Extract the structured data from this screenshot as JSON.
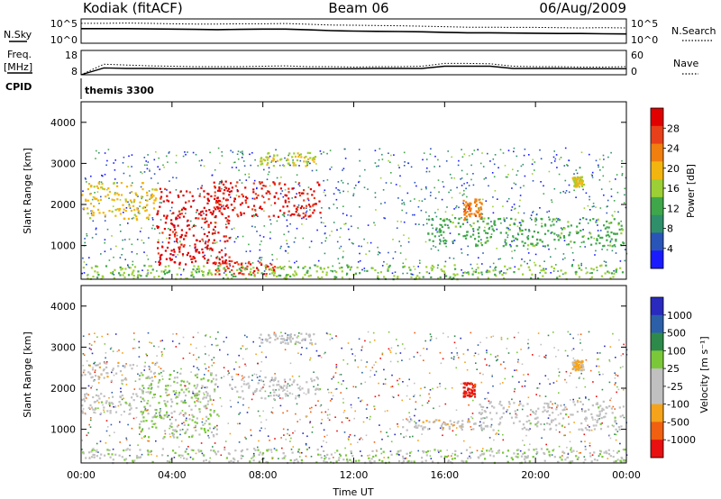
{
  "header": {
    "station": "Kodiak (fitACF)",
    "beam": "Beam 06",
    "date": "06/Aug/2009"
  },
  "left_labels": {
    "nsky": "N.Sky",
    "freq": "Freq.",
    "freq_unit": "[MHz]",
    "cpid": "CPID"
  },
  "right_labels": {
    "nsearch": "N.Search",
    "nave": "Nave"
  },
  "cpid_text": "themis 3300",
  "colors": {
    "power_scale": [
      "#1a1aff",
      "#2a55b8",
      "#2f8f6a",
      "#3fa74a",
      "#9ccf35",
      "#f2b50f",
      "#f07f10",
      "#e8401a",
      "#e00000"
    ],
    "velocity_scale": [
      "#2a2abf",
      "#2b60a8",
      "#2e8a4a",
      "#7ac83a",
      "#c0c0c0",
      "#c0c0c0",
      "#f5a31a",
      "#f06010",
      "#e81010"
    ]
  },
  "chart_data": [
    {
      "type": "line",
      "panel": "noise",
      "yticks": [
        "10^5",
        "10^0"
      ],
      "yticks_right": [
        "10^5",
        "10^0"
      ],
      "series": [
        {
          "values": [
            0.82,
            0.82,
            0.83,
            0.82,
            0.8,
            0.79,
            0.79,
            0.8,
            0.8,
            0.81,
            0.78,
            0.75,
            0.74,
            0.73,
            0.72,
            0.7,
            0.68,
            0.66,
            0.66,
            0.65,
            0.65,
            0.64,
            0.63,
            0.64,
            0.63
          ]
        },
        {
          "values": [
            0.6,
            0.6,
            0.6,
            0.59,
            0.58,
            0.57,
            0.56,
            0.57,
            0.58,
            0.58,
            0.55,
            0.52,
            0.5,
            0.49,
            0.48,
            0.47,
            0.45,
            0.43,
            0.43,
            0.42,
            0.41,
            0.4,
            0.4,
            0.39,
            0.38
          ]
        }
      ]
    },
    {
      "type": "line",
      "panel": "frequency",
      "yticks": [
        "18",
        "8"
      ],
      "yticks_right": [
        "60",
        "0"
      ],
      "series": [
        {
          "values": [
            8,
            10.8,
            10.6,
            10.6,
            10.5,
            10.5,
            10.5,
            10.5,
            10.5,
            10.5,
            10.5,
            10.5,
            10.5,
            10.6,
            10.6,
            10.6,
            11.5,
            11.5,
            11.5,
            10.6,
            10.6,
            10.6,
            10.5,
            10.5,
            10.5
          ]
        },
        {
          "values": [
            0,
            26,
            24,
            22,
            21,
            20,
            20,
            20,
            21,
            22,
            20,
            20,
            19,
            20,
            20,
            21,
            28,
            28,
            27,
            21,
            20,
            20,
            19,
            19,
            20
          ]
        }
      ]
    },
    {
      "type": "heatmap",
      "panel": "power",
      "ylabel": "Slant Range [km]",
      "xlim": [
        0,
        24
      ],
      "ylim": [
        180,
        4500
      ],
      "yticks": [
        "4000",
        "3000",
        "2000",
        "1000"
      ],
      "colorbar": {
        "label": "Power [dB]",
        "ticks": [
          "28",
          "24",
          "20",
          "16",
          "12",
          "8",
          "4"
        ],
        "range": [
          0,
          30
        ]
      },
      "features": [
        {
          "t0": 0.0,
          "t1": 3.3,
          "r0": 1650,
          "r1": 2550,
          "value": 18
        },
        {
          "t0": 3.3,
          "t1": 6.5,
          "r0": 550,
          "r1": 2450,
          "value": 28
        },
        {
          "t0": 5.8,
          "t1": 8.6,
          "r0": 300,
          "r1": 650,
          "value": 26
        },
        {
          "t0": 5.8,
          "t1": 10.5,
          "r0": 1700,
          "r1": 2600,
          "value": 27
        },
        {
          "t0": 7.8,
          "t1": 10.3,
          "r0": 2950,
          "r1": 3300,
          "value": 16
        },
        {
          "t0": 16.8,
          "t1": 17.6,
          "r0": 1650,
          "r1": 2150,
          "value": 22
        },
        {
          "t0": 15.2,
          "t1": 23.9,
          "r0": 1000,
          "r1": 1700,
          "value": 12
        },
        {
          "t0": 0.0,
          "t1": 23.9,
          "r0": 200,
          "r1": 550,
          "value": 14
        },
        {
          "t0": 21.6,
          "t1": 22.1,
          "r0": 2450,
          "r1": 2700,
          "value": 17
        }
      ]
    },
    {
      "type": "heatmap",
      "panel": "velocity",
      "ylabel": "Slant Range [km]",
      "xlabel": "Time UT",
      "xlim": [
        0,
        24
      ],
      "ylim": [
        180,
        4500
      ],
      "yticks": [
        "4000",
        "3000",
        "2000",
        "1000"
      ],
      "xticks": [
        "00:00",
        "04:00",
        "08:00",
        "12:00",
        "16:00",
        "20:00",
        "00:00"
      ],
      "colorbar": {
        "label": "Velocity [m s⁻¹]",
        "ticks": [
          "1000",
          "500",
          "100",
          "25",
          "-25",
          "-100",
          "-500",
          "-1000"
        ],
        "range": [
          -1200,
          1200
        ]
      },
      "features": [
        {
          "t0": 0.0,
          "t1": 3.3,
          "r0": 2200,
          "r1": 2650,
          "value": -300
        },
        {
          "t0": 0.0,
          "t1": 2.5,
          "r0": 1400,
          "r1": 1900,
          "value": 0
        },
        {
          "t0": 2.5,
          "t1": 6.0,
          "r0": 800,
          "r1": 2450,
          "value": 150
        },
        {
          "t0": 6.5,
          "t1": 10.5,
          "r0": 1750,
          "r1": 2300,
          "value": 0
        },
        {
          "t0": 7.8,
          "t1": 10.3,
          "r0": 3100,
          "r1": 3350,
          "value": 0
        },
        {
          "t0": 16.8,
          "t1": 17.3,
          "r0": 1800,
          "r1": 2150,
          "value": -1000
        },
        {
          "t0": 14.0,
          "t1": 18.0,
          "r0": 1000,
          "r1": 1250,
          "value": -300
        },
        {
          "t0": 17.5,
          "t1": 23.9,
          "r0": 1000,
          "r1": 1700,
          "value": 0
        },
        {
          "t0": 0.0,
          "t1": 23.9,
          "r0": 200,
          "r1": 550,
          "value": 80
        },
        {
          "t0": 21.6,
          "t1": 22.1,
          "r0": 2450,
          "r1": 2700,
          "value": -400
        }
      ]
    }
  ]
}
